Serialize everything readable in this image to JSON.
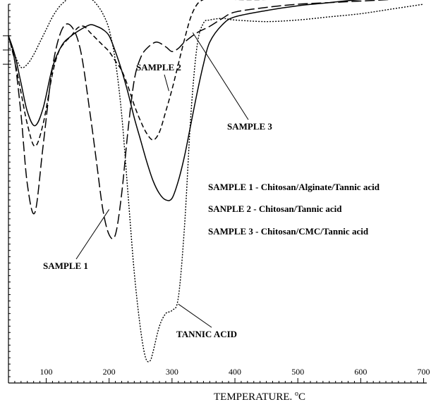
{
  "chart_data": {
    "type": "line",
    "title": "",
    "xlabel": "TEMPERATURE.",
    "xlabel_unit_sup": "o",
    "xlabel_unit": "C",
    "ylabel": "",
    "xlim": [
      40,
      705
    ],
    "ylim": [
      -11,
      1
    ],
    "x_ticks": [
      100,
      200,
      300,
      400,
      500,
      600,
      700
    ],
    "grid": false,
    "y_tick_labels_shown": false,
    "legend_lines": [
      "SAMPLE 1 - Chitosan/Alginate/Tannic acid",
      "SANPLE 2 - Chitosan/Tannic acid",
      "SAMPLE 3 - Chitosan/CMC/Tannic acid"
    ],
    "legend_position": "middle-right",
    "series": [
      {
        "name": "SAMPLE 1",
        "style": "long-dash",
        "x": [
          40,
          50,
          60,
          70,
          82,
          95,
          110,
          125,
          140,
          155,
          170,
          180,
          190,
          200,
          210,
          220,
          230,
          240,
          250,
          260,
          275,
          290,
          300,
          310,
          320,
          340,
          360,
          380,
          400,
          450,
          500,
          550,
          600,
          650,
          700
        ],
        "y": [
          0,
          -0.8,
          -2.5,
          -4.7,
          -5.6,
          -3.5,
          -1.0,
          0.2,
          0.3,
          -0.5,
          -2.5,
          -4.0,
          -5.5,
          -6.3,
          -6.3,
          -5.0,
          -3.0,
          -1.4,
          -0.7,
          -0.4,
          -0.2,
          -0.35,
          -0.5,
          -0.4,
          -0.2,
          0.1,
          0.3,
          0.55,
          0.75,
          0.9,
          1.0,
          1.05,
          1.1,
          1.15,
          1.2
        ]
      },
      {
        "name": "SAMPLE 2",
        "style": "dash",
        "x": [
          40,
          50,
          60,
          70,
          82,
          95,
          110,
          120,
          130,
          140,
          150,
          160,
          170,
          180,
          190,
          200,
          210,
          220,
          230,
          240,
          250,
          260,
          270,
          280,
          290,
          300,
          310,
          320,
          330,
          340,
          350,
          360,
          380,
          400,
          450,
          500,
          550,
          600,
          650,
          700
        ],
        "y": [
          0,
          -0.8,
          -1.8,
          -2.8,
          -3.5,
          -2.8,
          -1.2,
          -0.5,
          -0.2,
          0.0,
          0.25,
          0.3,
          0.1,
          -0.1,
          -0.3,
          -0.5,
          -0.8,
          -1.1,
          -1.6,
          -2.2,
          -2.7,
          -3.1,
          -3.3,
          -3.05,
          -2.4,
          -1.7,
          -0.9,
          -0.1,
          0.6,
          1.0,
          1.15,
          1.2,
          1.2,
          1.15,
          1.15,
          1.2,
          1.25,
          1.25,
          1.25,
          1.25
        ]
      },
      {
        "name": "SAMPLE 3",
        "style": "solid",
        "x": [
          40,
          50,
          60,
          70,
          82,
          95,
          110,
          125,
          140,
          155,
          170,
          180,
          190,
          200,
          210,
          220,
          230,
          240,
          250,
          260,
          270,
          280,
          290,
          300,
          310,
          320,
          330,
          340,
          350,
          360,
          380,
          400,
          450,
          500,
          550,
          600,
          650,
          700
        ],
        "y": [
          0,
          -0.6,
          -1.5,
          -2.4,
          -2.85,
          -2.3,
          -1.0,
          -0.3,
          0.0,
          0.2,
          0.35,
          0.3,
          0.2,
          0.0,
          -0.5,
          -1.1,
          -1.8,
          -2.6,
          -3.3,
          -4.0,
          -4.6,
          -5.0,
          -5.2,
          -5.15,
          -4.6,
          -3.8,
          -2.8,
          -1.8,
          -0.9,
          -0.2,
          0.35,
          0.6,
          0.8,
          0.95,
          1.05,
          1.15,
          1.2,
          1.25
        ]
      },
      {
        "name": "TANNIC ACID",
        "style": "dotted",
        "x": [
          40,
          50,
          60,
          70,
          80,
          90,
          100,
          110,
          120,
          130,
          140,
          150,
          160,
          170,
          180,
          190,
          200,
          210,
          220,
          230,
          240,
          250,
          258,
          265,
          270,
          280,
          290,
          300,
          310,
          320,
          330,
          340,
          350,
          360,
          380,
          400,
          450,
          500,
          550,
          600,
          650,
          700
        ],
        "y": [
          0,
          -0.6,
          -1.0,
          -0.9,
          -0.6,
          -0.2,
          0.2,
          0.6,
          0.9,
          1.1,
          1.25,
          1.3,
          1.3,
          1.2,
          1.0,
          0.7,
          0.2,
          -0.8,
          -2.5,
          -5.0,
          -7.5,
          -9.3,
          -10.2,
          -10.3,
          -10.0,
          -9.2,
          -8.8,
          -8.7,
          -8.3,
          -6.0,
          -2.5,
          -0.3,
          0.4,
          0.5,
          0.55,
          0.5,
          0.45,
          0.5,
          0.6,
          0.7,
          0.85,
          1.0
        ]
      }
    ],
    "annotations": [
      {
        "text": "SAMPLE 2",
        "target_series": "SAMPLE 2",
        "x": 295,
        "y": -1.75
      },
      {
        "text": "SAMPLE 3",
        "target_series": "SAMPLE 3",
        "x": 333,
        "y": 0.1
      },
      {
        "text": "SAMPLE 1",
        "target_series": "SAMPLE 1",
        "x": 200,
        "y": -5.5
      },
      {
        "text": "TANNIC ACID",
        "target_series": "TANNIC ACID",
        "x": 310,
        "y": -8.5
      }
    ]
  }
}
